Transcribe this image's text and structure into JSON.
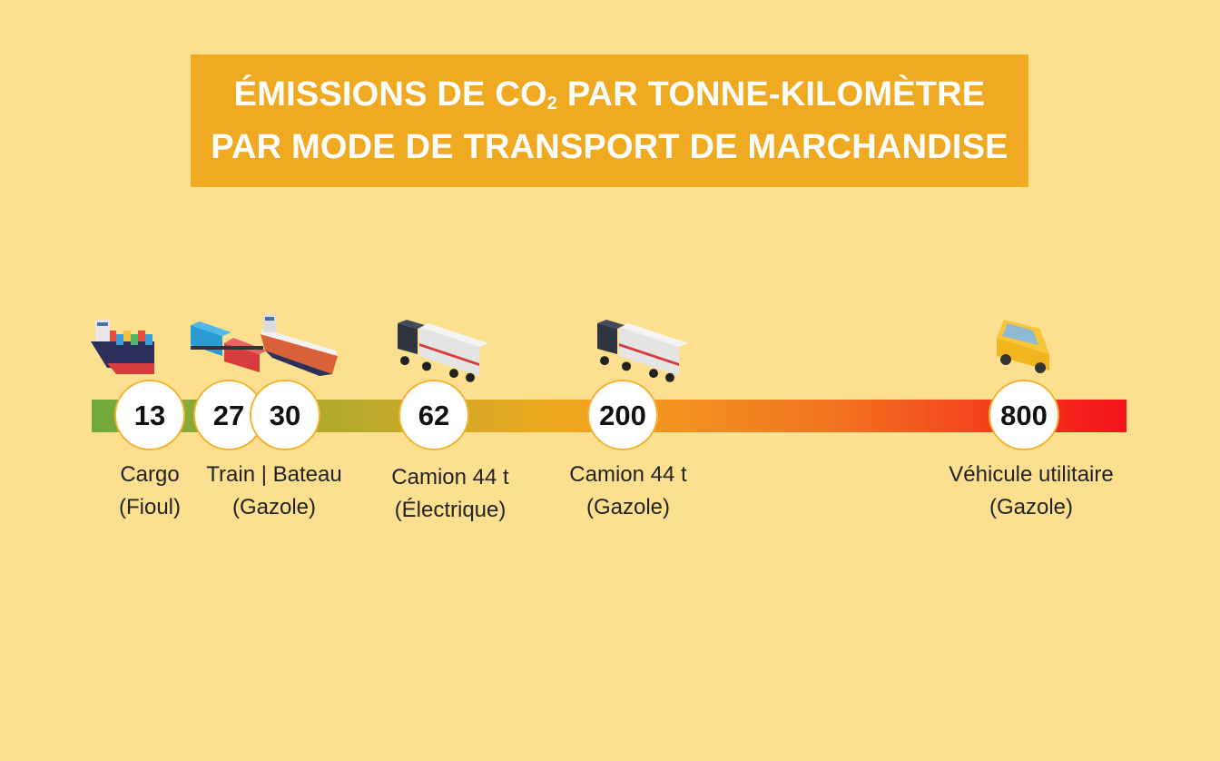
{
  "title": {
    "line1_pre": "ÉMISSIONS DE CO",
    "line1_sub": "2",
    "line1_post": " PAR TONNE-KILOMÈTRE",
    "line2": "PAR MODE DE TRANSPORT DE MARCHANDISE"
  },
  "colors": {
    "background": "#fce08f",
    "title_bg": "#f0aa22",
    "gradient": [
      "#6ea93a",
      "#f0a91f",
      "#f2731f",
      "#f5121a"
    ]
  },
  "chart_data": {
    "type": "scatter",
    "scale": "ordinal-timeline",
    "points": [
      {
        "value": 13,
        "label": "13",
        "icon": "container-ship-icon"
      },
      {
        "value": 27,
        "label": "27",
        "icon": "freight-train-icon"
      },
      {
        "value": 30,
        "label": "30",
        "icon": "barge-icon"
      },
      {
        "value": 62,
        "label": "62",
        "icon": "semi-truck-icon"
      },
      {
        "value": 200,
        "label": "200",
        "icon": "semi-truck-icon"
      },
      {
        "value": 800,
        "label": "800",
        "icon": "utility-van-icon"
      }
    ],
    "categories": [
      {
        "line1": "Cargo",
        "line2": "(Fioul)"
      },
      {
        "line1": "Train | Bateau",
        "line2": "(Gazole)"
      },
      {
        "line1": "Camion 44 t",
        "line2": "(Électrique)"
      },
      {
        "line1": "Camion 44 t",
        "line2": "(Gazole)"
      },
      {
        "line1": "Véhicule utilitaire",
        "line2": "(Gazole)"
      }
    ]
  }
}
